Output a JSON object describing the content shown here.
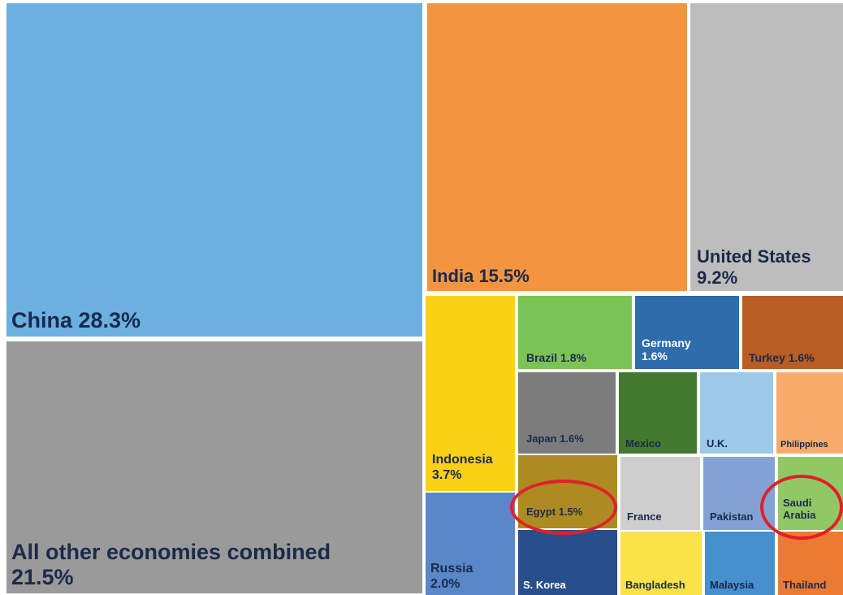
{
  "chart_data": {
    "type": "treemap",
    "cells": [
      {
        "name": "China",
        "value": 28.3,
        "text": "China 28.3%",
        "color": "#6cb0e2"
      },
      {
        "name": "All other economies combined",
        "value": 21.5,
        "text": "All other economies combined\n21.5%",
        "color": "#9a9a9a"
      },
      {
        "name": "India",
        "value": 15.5,
        "text": "India 15.5%",
        "color": "#f39440"
      },
      {
        "name": "United States",
        "value": 9.2,
        "text": "United States\n9.2%",
        "color": "#bdbdbd"
      },
      {
        "name": "Indonesia",
        "value": 3.7,
        "text": "Indonesia\n3.7%",
        "color": "#fbd117"
      },
      {
        "name": "Russia",
        "value": 2.0,
        "text": "Russia\n2.0%",
        "color": "#5a87c8"
      },
      {
        "name": "Brazil",
        "value": 1.8,
        "text": "Brazil 1.8%",
        "color": "#7cc356"
      },
      {
        "name": "Germany",
        "value": 1.6,
        "text": "Germany\n1.6%",
        "color": "#2e6cab"
      },
      {
        "name": "Turkey",
        "value": 1.6,
        "text": "Turkey 1.6%",
        "color": "#b95d24"
      },
      {
        "name": "Japan",
        "value": 1.6,
        "text": "Japan 1.6%",
        "color": "#7c7c7c"
      },
      {
        "name": "Egypt",
        "value": 1.5,
        "text": "Egypt 1.5%",
        "color": "#ad8b22"
      },
      {
        "name": "S. Korea",
        "value": null,
        "text": "S. Korea",
        "color": "#274f8c"
      },
      {
        "name": "Mexico",
        "value": null,
        "text": "Mexico",
        "color": "#437a30"
      },
      {
        "name": "U.K.",
        "value": null,
        "text": "U.K.",
        "color": "#9cc8ea"
      },
      {
        "name": "Philippines",
        "value": null,
        "text": "Philippines",
        "color": "#f8ab6b"
      },
      {
        "name": "France",
        "value": null,
        "text": "France",
        "color": "#cecece"
      },
      {
        "name": "Pakistan",
        "value": null,
        "text": "Pakistan",
        "color": "#82a2d5"
      },
      {
        "name": "Saudi Arabia",
        "value": null,
        "text": "Saudi\nArabia",
        "color": "#90c865"
      },
      {
        "name": "Bangladesh",
        "value": null,
        "text": "Bangladesh",
        "color": "#fbe248"
      },
      {
        "name": "Malaysia",
        "value": null,
        "text": "Malaysia",
        "color": "#4690cf"
      },
      {
        "name": "Thailand",
        "value": null,
        "text": "Thailand",
        "color": "#ec7b31"
      }
    ],
    "highlighted": [
      "Egypt",
      "Saudi Arabia"
    ],
    "highlight_color": "#e0202a",
    "label_color": "#1a2a4a",
    "label_color_light": "#ffffff"
  }
}
